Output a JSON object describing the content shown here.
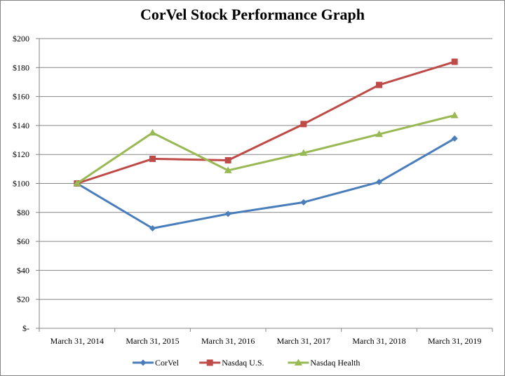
{
  "chart_data": {
    "type": "line",
    "title": "CorVel Stock Performance Graph",
    "xlabel": "",
    "ylabel": "",
    "categories": [
      "March 31, 2014",
      "March 31, 2015",
      "March 31, 2016",
      "March 31, 2017",
      "March 31, 2018",
      "March 31, 2019"
    ],
    "ylim": [
      0,
      200
    ],
    "yticks": [
      0,
      20,
      40,
      60,
      80,
      100,
      120,
      140,
      160,
      180,
      200
    ],
    "ytick_labels": [
      "$-",
      "$20",
      "$40",
      "$60",
      "$80",
      "$100",
      "$120",
      "$140",
      "$160",
      "$180",
      "$200"
    ],
    "grid": true,
    "legend_position": "bottom",
    "series": [
      {
        "name": "CorVel",
        "color": "#4a7ebb",
        "marker": "diamond",
        "values": [
          100,
          69,
          79,
          87,
          101,
          131
        ]
      },
      {
        "name": "Nasdaq U.S.",
        "color": "#be4b48",
        "marker": "square",
        "values": [
          100,
          117,
          116,
          141,
          168,
          184
        ]
      },
      {
        "name": "Nasdaq Health",
        "color": "#98b954",
        "marker": "triangle",
        "values": [
          100,
          135,
          109,
          121,
          134,
          147
        ]
      }
    ]
  }
}
